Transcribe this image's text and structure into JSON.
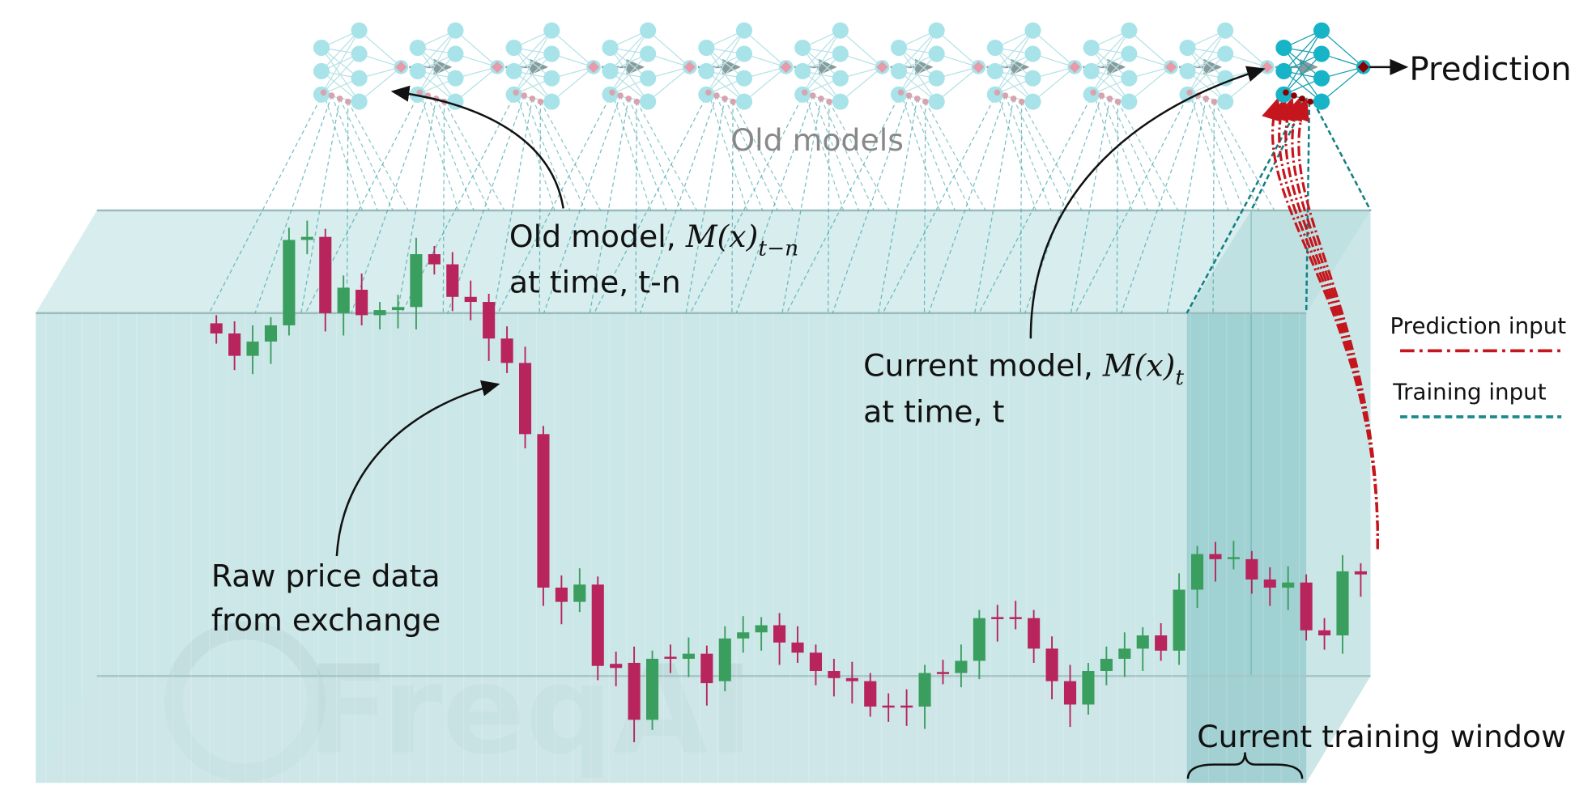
{
  "prediction": "Prediction",
  "old_models": "Old models",
  "old_model": {
    "text": "Old model, ",
    "math": "M(x)",
    "sub": "t−n",
    "line2": "at time, t-n"
  },
  "current_model": {
    "text": "Current model, ",
    "math": "M(x)",
    "sub": "t",
    "line2": "at time, t"
  },
  "raw_data": {
    "line1": "Raw price data",
    "line2": "from exchange"
  },
  "legend": {
    "prediction_input": "Prediction input",
    "training_input": "Training input"
  },
  "window_label": "Current training window",
  "watermark": "FreqAI"
}
